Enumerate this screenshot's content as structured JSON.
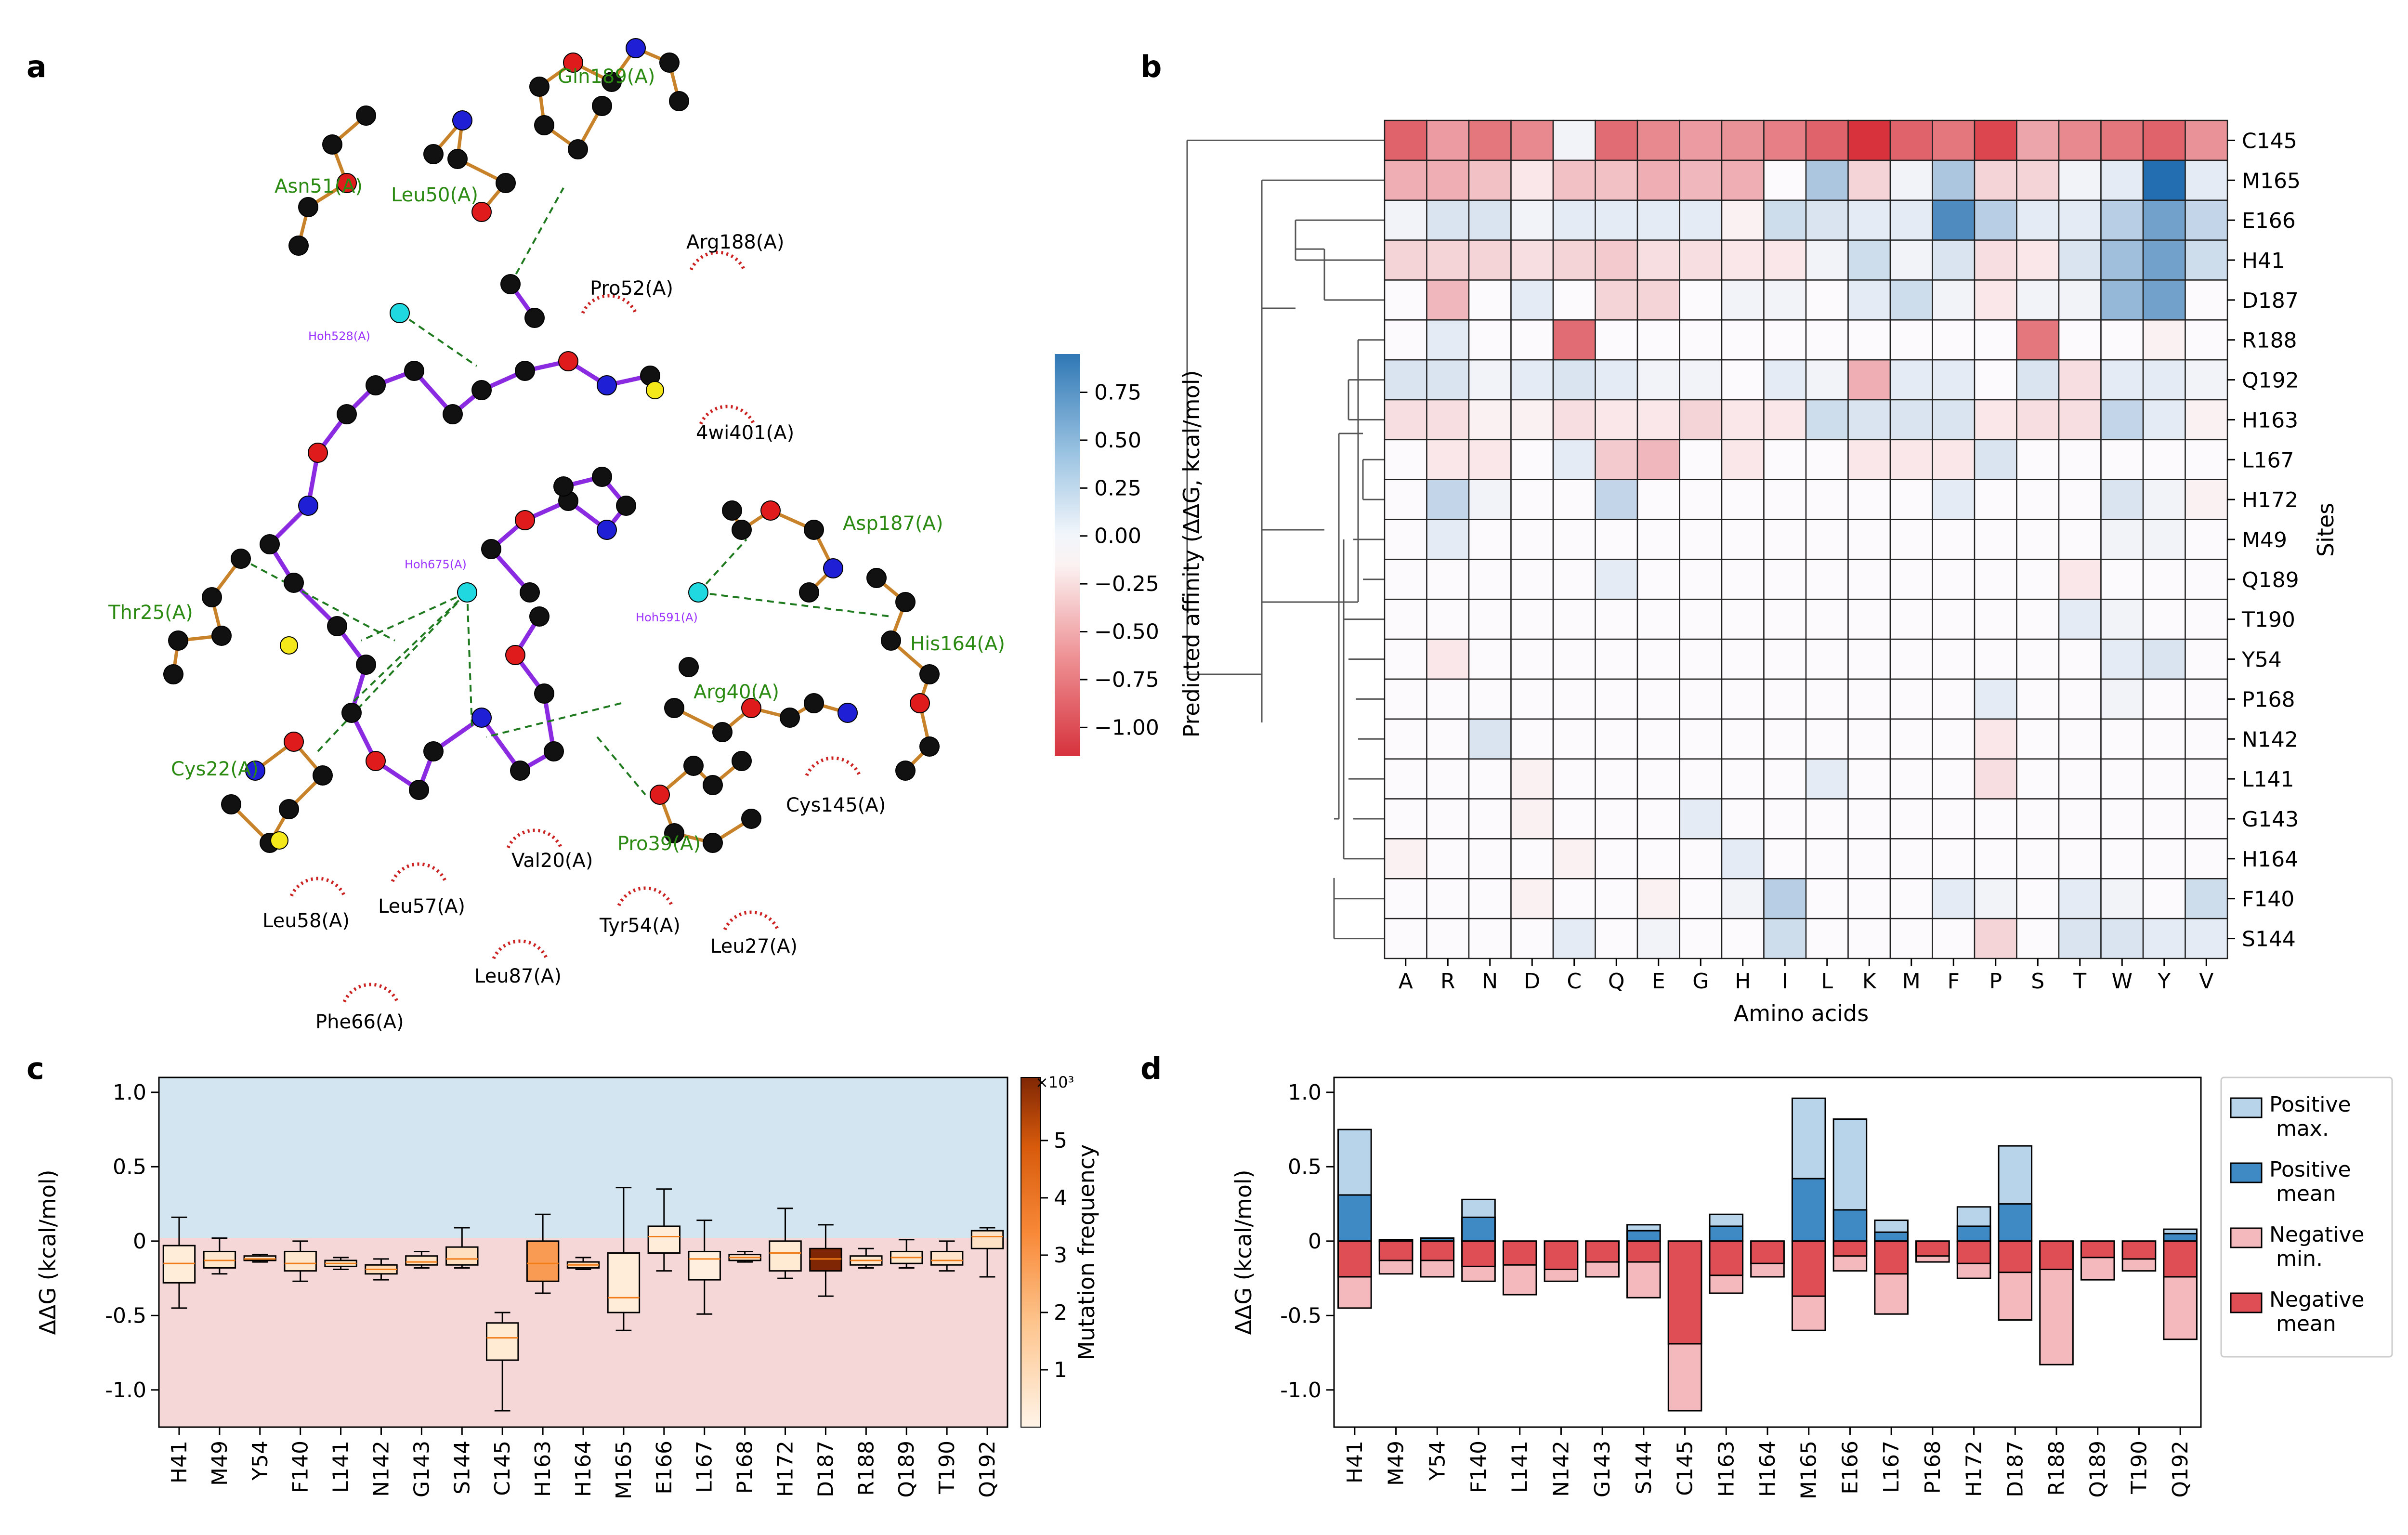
{
  "panel_labels": [
    "a",
    "b",
    "c",
    "d"
  ],
  "colors": {
    "pos_light": "#b7d4ea",
    "pos_dark": "#3f8ac4",
    "neg_light": "#f4b9bd",
    "neg_dark": "#df4d55",
    "bg_pos": "#d3e5f1",
    "bg_neg": "#f5d7d7",
    "bond_purple": "#8a2be2",
    "bond_orange": "#c8822a",
    "hbond_green": "#1f7a1f",
    "arc_red": "#cc2222",
    "ligand_label_green": "#2a8a12",
    "water_label_purple": "#9b30ff"
  },
  "panel_a": {
    "residue_labels": [
      {
        "text": "Gln189(A)",
        "color": "green"
      },
      {
        "text": "Asn51(A)",
        "color": "green"
      },
      {
        "text": "Leu50(A)",
        "color": "green"
      },
      {
        "text": "Arg188(A)",
        "color": "black"
      },
      {
        "text": "Pro52(A)",
        "color": "black"
      },
      {
        "text": "Hoh528(A)",
        "color": "purple"
      },
      {
        "text": "4wi401(A)",
        "color": "black"
      },
      {
        "text": "Hoh675(A)",
        "color": "purple"
      },
      {
        "text": "Hoh591(A)",
        "color": "purple"
      },
      {
        "text": "Asp187(A)",
        "color": "green"
      },
      {
        "text": "Thr25(A)",
        "color": "green"
      },
      {
        "text": "His164(A)",
        "color": "green"
      },
      {
        "text": "Arg40(A)",
        "color": "green"
      },
      {
        "text": "Cys22(A)",
        "color": "green"
      },
      {
        "text": "Cys145(A)",
        "color": "black"
      },
      {
        "text": "Pro39(A)",
        "color": "green"
      },
      {
        "text": "Val20(A)",
        "color": "black"
      },
      {
        "text": "Leu58(A)",
        "color": "black"
      },
      {
        "text": "Leu57(A)",
        "color": "black"
      },
      {
        "text": "Tyr54(A)",
        "color": "black"
      },
      {
        "text": "Leu27(A)",
        "color": "black"
      },
      {
        "text": "Leu87(A)",
        "color": "black"
      },
      {
        "text": "Phe66(A)",
        "color": "black"
      }
    ]
  },
  "chart_data": [
    {
      "panel": "b",
      "type": "heatmap",
      "xlabel": "Amino acids",
      "ylabel": "Sites",
      "colorbar_label": "Predicted affinity (ΔΔG, kcal/mol)",
      "colorbar_ticks": [
        "0.75",
        "0.50",
        "0.25",
        "0.00",
        "−0.25",
        "−0.50",
        "−0.75",
        "−1.00"
      ],
      "colorbar_range": [
        -1.15,
        0.95
      ],
      "columns": [
        "A",
        "R",
        "N",
        "D",
        "C",
        "Q",
        "E",
        "G",
        "H",
        "I",
        "L",
        "K",
        "M",
        "F",
        "P",
        "S",
        "T",
        "W",
        "Y",
        "V"
      ],
      "rows": [
        "C145",
        "M165",
        "E166",
        "H41",
        "D187",
        "R188",
        "Q192",
        "H163",
        "L167",
        "H172",
        "M49",
        "Q189",
        "T190",
        "Y54",
        "P168",
        "N142",
        "L141",
        "G143",
        "H164",
        "F140",
        "S144"
      ],
      "values": [
        [
          -0.8,
          -0.5,
          -0.7,
          -0.6,
          0.05,
          -0.75,
          -0.6,
          -0.5,
          -0.55,
          -0.65,
          -0.8,
          -1.05,
          -0.8,
          -0.7,
          -0.95,
          -0.45,
          -0.6,
          -0.7,
          -0.8,
          -0.55
        ],
        [
          -0.4,
          -0.4,
          -0.3,
          -0.1,
          -0.3,
          -0.3,
          -0.4,
          -0.35,
          -0.4,
          0.0,
          0.35,
          -0.2,
          0.05,
          0.35,
          -0.2,
          -0.2,
          0.05,
          0.1,
          0.95,
          0.1
        ],
        [
          0.05,
          0.15,
          0.15,
          0.05,
          0.1,
          0.1,
          0.1,
          0.1,
          -0.05,
          0.2,
          0.15,
          0.1,
          0.1,
          0.75,
          0.3,
          0.1,
          0.1,
          0.3,
          0.6,
          0.25
        ],
        [
          -0.2,
          -0.2,
          -0.2,
          -0.15,
          -0.2,
          -0.25,
          -0.15,
          -0.15,
          -0.1,
          -0.1,
          0.05,
          0.2,
          0.05,
          0.15,
          -0.15,
          -0.1,
          0.15,
          0.4,
          0.6,
          0.2
        ],
        [
          0.0,
          -0.35,
          0.0,
          0.1,
          0.0,
          -0.2,
          -0.2,
          0.0,
          0.05,
          0.05,
          0.0,
          0.1,
          0.2,
          0.05,
          -0.1,
          0.05,
          0.05,
          0.45,
          0.6,
          0.0
        ],
        [
          0.0,
          0.1,
          0.0,
          0.0,
          -0.75,
          0.0,
          0.0,
          0.0,
          0.0,
          0.0,
          0.0,
          0.0,
          0.0,
          0.0,
          0.0,
          -0.7,
          0.0,
          0.0,
          -0.05,
          0.0
        ],
        [
          0.15,
          0.15,
          0.05,
          0.1,
          0.15,
          0.1,
          0.05,
          0.05,
          0.0,
          0.1,
          0.05,
          -0.4,
          0.1,
          0.1,
          0.0,
          0.15,
          -0.15,
          0.1,
          0.1,
          0.05
        ],
        [
          -0.15,
          -0.15,
          -0.05,
          -0.05,
          -0.15,
          -0.1,
          -0.1,
          -0.2,
          -0.1,
          -0.1,
          0.2,
          0.15,
          0.15,
          0.15,
          -0.1,
          -0.15,
          -0.15,
          0.25,
          0.1,
          -0.05
        ],
        [
          0.0,
          -0.1,
          -0.1,
          0.0,
          0.1,
          -0.25,
          -0.35,
          0.0,
          -0.1,
          0.0,
          0.0,
          -0.1,
          -0.1,
          -0.1,
          0.15,
          0.0,
          0.0,
          0.0,
          0.0,
          0.0
        ],
        [
          0.0,
          0.25,
          0.05,
          0.0,
          0.0,
          0.25,
          0.0,
          0.0,
          0.0,
          0.0,
          0.0,
          0.0,
          0.0,
          0.1,
          0.0,
          0.0,
          0.0,
          0.15,
          0.05,
          -0.05
        ],
        [
          0.0,
          0.1,
          0.0,
          0.0,
          0.0,
          0.0,
          0.0,
          0.0,
          0.0,
          0.0,
          0.0,
          0.0,
          0.0,
          0.0,
          0.0,
          0.0,
          0.0,
          0.05,
          0.05,
          0.0
        ],
        [
          0.0,
          0.0,
          0.0,
          0.0,
          0.0,
          0.1,
          0.0,
          0.0,
          0.0,
          0.0,
          0.0,
          0.0,
          0.0,
          0.0,
          0.0,
          0.0,
          -0.1,
          0.0,
          0.0,
          0.0
        ],
        [
          0.0,
          0.0,
          0.0,
          0.0,
          0.0,
          0.0,
          0.0,
          0.0,
          0.0,
          0.0,
          0.0,
          0.0,
          0.0,
          0.0,
          0.0,
          0.0,
          0.1,
          0.05,
          0.0,
          0.0
        ],
        [
          0.0,
          -0.1,
          0.0,
          0.0,
          0.0,
          0.0,
          0.0,
          0.0,
          0.0,
          0.0,
          0.0,
          0.0,
          0.0,
          0.0,
          0.0,
          0.0,
          0.0,
          0.1,
          0.15,
          0.0
        ],
        [
          0.0,
          0.0,
          0.0,
          0.0,
          0.0,
          0.0,
          0.0,
          0.0,
          0.0,
          0.0,
          0.0,
          0.0,
          0.0,
          0.0,
          0.1,
          0.0,
          0.0,
          0.05,
          0.0,
          0.0
        ],
        [
          0.0,
          0.0,
          0.15,
          0.0,
          0.0,
          0.0,
          0.0,
          0.0,
          0.0,
          0.0,
          0.0,
          0.0,
          0.0,
          0.0,
          -0.1,
          0.0,
          0.0,
          0.0,
          0.0,
          0.0
        ],
        [
          0.0,
          0.0,
          0.0,
          -0.05,
          0.0,
          0.0,
          0.0,
          0.0,
          0.0,
          0.0,
          0.1,
          0.0,
          0.0,
          0.0,
          -0.15,
          0.0,
          0.0,
          0.0,
          0.0,
          0.0
        ],
        [
          0.0,
          0.0,
          0.0,
          -0.05,
          0.0,
          0.0,
          0.0,
          0.1,
          0.0,
          0.0,
          0.0,
          0.0,
          0.0,
          0.0,
          0.0,
          0.0,
          0.0,
          0.0,
          0.0,
          0.0
        ],
        [
          -0.05,
          0.0,
          0.0,
          0.0,
          -0.05,
          0.0,
          0.0,
          0.0,
          0.1,
          0.0,
          0.0,
          0.0,
          0.0,
          0.0,
          0.0,
          0.0,
          0.0,
          0.0,
          0.0,
          0.0
        ],
        [
          0.0,
          0.0,
          0.0,
          -0.05,
          0.0,
          0.0,
          -0.05,
          0.0,
          0.05,
          0.3,
          0.0,
          0.0,
          0.0,
          0.1,
          0.05,
          0.0,
          0.1,
          0.05,
          0.0,
          0.2
        ],
        [
          0.0,
          0.0,
          0.0,
          0.0,
          0.1,
          0.0,
          0.05,
          0.0,
          0.0,
          0.2,
          0.0,
          0.0,
          0.0,
          0.0,
          -0.2,
          0.0,
          0.15,
          0.15,
          0.1,
          0.1
        ]
      ]
    },
    {
      "panel": "c",
      "type": "box",
      "ylabel": "ΔΔG (kcal/mol)",
      "ylim": [
        -1.25,
        1.1
      ],
      "yticks": [
        "1.0",
        "0.5",
        "0",
        "-0.5",
        "-1.0"
      ],
      "colorbar_label": "Mutation frequency",
      "colorbar_exponent": "×10³",
      "colorbar_ticks": [
        "1",
        "2",
        "3",
        "4",
        "5"
      ],
      "colorbar_range": [
        0,
        6.1
      ],
      "categories": [
        "H41",
        "M49",
        "Y54",
        "F140",
        "L141",
        "N142",
        "G143",
        "S144",
        "C145",
        "H163",
        "H164",
        "M165",
        "E166",
        "L167",
        "P168",
        "H172",
        "D187",
        "R188",
        "Q189",
        "T190",
        "Q192"
      ],
      "boxes": [
        {
          "wlo": -0.45,
          "q1": -0.28,
          "med": -0.15,
          "q3": -0.03,
          "whi": 0.16,
          "freq": 0.3
        },
        {
          "wlo": -0.22,
          "q1": -0.18,
          "med": -0.13,
          "q3": -0.07,
          "whi": 0.02,
          "freq": 0.5
        },
        {
          "wlo": -0.14,
          "q1": -0.13,
          "med": -0.12,
          "q3": -0.1,
          "whi": -0.09,
          "freq": 0.6
        },
        {
          "wlo": -0.27,
          "q1": -0.2,
          "med": -0.15,
          "q3": -0.07,
          "whi": 0.0,
          "freq": 0.5
        },
        {
          "wlo": -0.19,
          "q1": -0.17,
          "med": -0.15,
          "q3": -0.13,
          "whi": -0.11,
          "freq": 0.5
        },
        {
          "wlo": -0.26,
          "q1": -0.22,
          "med": -0.19,
          "q3": -0.16,
          "whi": -0.12,
          "freq": 1.0
        },
        {
          "wlo": -0.18,
          "q1": -0.16,
          "med": -0.14,
          "q3": -0.1,
          "whi": -0.07,
          "freq": 0.7
        },
        {
          "wlo": -0.18,
          "q1": -0.16,
          "med": -0.12,
          "q3": -0.04,
          "whi": 0.09,
          "freq": 0.8
        },
        {
          "wlo": -1.14,
          "q1": -0.8,
          "med": -0.65,
          "q3": -0.55,
          "whi": -0.48,
          "freq": 0.4
        },
        {
          "wlo": -0.35,
          "q1": -0.27,
          "med": -0.15,
          "q3": 0.0,
          "whi": 0.18,
          "freq": 2.9
        },
        {
          "wlo": -0.19,
          "q1": -0.18,
          "med": -0.16,
          "q3": -0.14,
          "whi": -0.11,
          "freq": 1.0
        },
        {
          "wlo": -0.6,
          "q1": -0.48,
          "med": -0.38,
          "q3": -0.08,
          "whi": 0.36,
          "freq": 0.3
        },
        {
          "wlo": -0.2,
          "q1": -0.08,
          "med": 0.03,
          "q3": 0.1,
          "whi": 0.35,
          "freq": 0.3
        },
        {
          "wlo": -0.49,
          "q1": -0.26,
          "med": -0.12,
          "q3": -0.07,
          "whi": 0.14,
          "freq": 0.2
        },
        {
          "wlo": -0.14,
          "q1": -0.13,
          "med": -0.11,
          "q3": -0.09,
          "whi": -0.07,
          "freq": 0.7
        },
        {
          "wlo": -0.25,
          "q1": -0.2,
          "med": -0.08,
          "q3": 0.0,
          "whi": 0.22,
          "freq": 0.4
        },
        {
          "wlo": -0.37,
          "q1": -0.2,
          "med": -0.12,
          "q3": -0.05,
          "whi": 0.11,
          "freq": 6.1
        },
        {
          "wlo": -0.18,
          "q1": -0.16,
          "med": -0.13,
          "q3": -0.1,
          "whi": -0.05,
          "freq": 0.5
        },
        {
          "wlo": -0.18,
          "q1": -0.15,
          "med": -0.11,
          "q3": -0.07,
          "whi": 0.01,
          "freq": 0.5
        },
        {
          "wlo": -0.2,
          "q1": -0.16,
          "med": -0.13,
          "q3": -0.07,
          "whi": 0.0,
          "freq": 0.6
        },
        {
          "wlo": -0.24,
          "q1": -0.05,
          "med": 0.03,
          "q3": 0.07,
          "whi": 0.09,
          "freq": 0.7
        }
      ]
    },
    {
      "panel": "d",
      "type": "bar",
      "ylabel": "ΔΔG (kcal/mol)",
      "ylim": [
        -1.25,
        1.1
      ],
      "yticks": [
        "1.0",
        "0.5",
        "0",
        "-0.5",
        "-1.0"
      ],
      "categories": [
        "H41",
        "M49",
        "Y54",
        "F140",
        "L141",
        "N142",
        "G143",
        "S144",
        "C145",
        "H163",
        "H164",
        "M165",
        "E166",
        "L167",
        "P168",
        "H172",
        "D187",
        "R188",
        "Q189",
        "T190",
        "Q192"
      ],
      "legend": [
        "Positive\n max.",
        "Positive\n mean",
        "Negative\n min.",
        "Negative\n mean"
      ],
      "series": [
        {
          "name": "Positive max.",
          "values": [
            0.75,
            0.01,
            0.02,
            0.28,
            0,
            0,
            0,
            0.11,
            0,
            0.18,
            0,
            0.96,
            0.82,
            0.14,
            0,
            0.23,
            0.64,
            0,
            0,
            0,
            0.08
          ]
        },
        {
          "name": "Positive mean",
          "values": [
            0.31,
            0.01,
            0.02,
            0.16,
            0,
            0,
            0,
            0.07,
            0,
            0.1,
            0,
            0.42,
            0.21,
            0.06,
            0,
            0.1,
            0.25,
            0,
            0,
            0,
            0.05
          ]
        },
        {
          "name": "Negative min.",
          "values": [
            -0.45,
            -0.22,
            -0.24,
            -0.27,
            -0.36,
            -0.27,
            -0.24,
            -0.38,
            -1.14,
            -0.35,
            -0.24,
            -0.6,
            -0.2,
            -0.49,
            -0.14,
            -0.25,
            -0.53,
            -0.83,
            -0.26,
            -0.2,
            -0.66
          ]
        },
        {
          "name": "Negative mean",
          "values": [
            -0.24,
            -0.13,
            -0.13,
            -0.17,
            -0.16,
            -0.19,
            -0.14,
            -0.14,
            -0.69,
            -0.23,
            -0.15,
            -0.37,
            -0.1,
            -0.22,
            -0.1,
            -0.15,
            -0.21,
            -0.19,
            -0.11,
            -0.12,
            -0.24
          ]
        }
      ]
    }
  ]
}
